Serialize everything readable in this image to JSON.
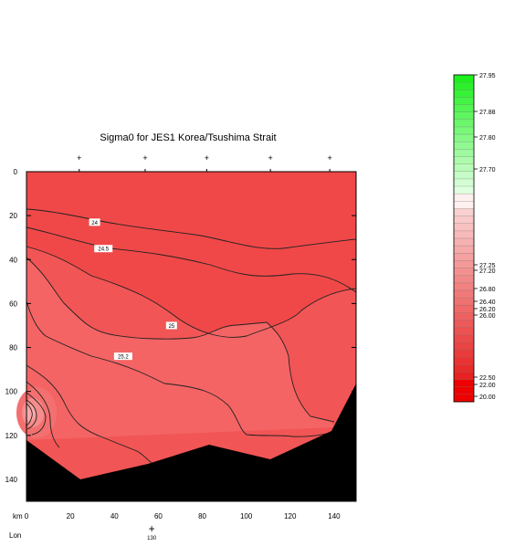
{
  "chart_data": {
    "type": "contour",
    "title": "Sigma0 for JES1 Korea/Tsushima Strait",
    "x_axis": {
      "unit_label": "km",
      "ticks": [
        0,
        20,
        40,
        60,
        80,
        100,
        120,
        140
      ],
      "range": [
        0,
        150
      ]
    },
    "y_axis": {
      "ticks": [
        0,
        20,
        40,
        60,
        80,
        100,
        120,
        140
      ],
      "range": [
        0,
        150
      ],
      "inverted": true
    },
    "lon_axis": {
      "label": "Lon",
      "tick_label": "130",
      "tick_km": 57
    },
    "station_km": [
      24,
      54,
      82,
      111,
      138
    ],
    "contour_labels": [
      {
        "text": "24",
        "x": 31,
        "y": 23
      },
      {
        "text": "24.5",
        "x": 35,
        "y": 35
      },
      {
        "text": "25",
        "x": 66,
        "y": 70
      },
      {
        "text": "25.2",
        "x": 44,
        "y": 84
      }
    ],
    "colorbar": {
      "labels": [
        "27.95",
        "27.88",
        "27.80",
        "27.70",
        "27.25",
        "27.20",
        "26.80",
        "26.40",
        "26.20",
        "26.00",
        "22.50",
        "22.00",
        "20.00"
      ],
      "green": "#33ee33",
      "red": "#ee0000"
    },
    "colors": {
      "fill_dark": "#f04848",
      "fill_mid": "#f25555",
      "fill_light": "#f46464",
      "fill_core": "#f8a8a8",
      "bottom": "#000000"
    }
  }
}
